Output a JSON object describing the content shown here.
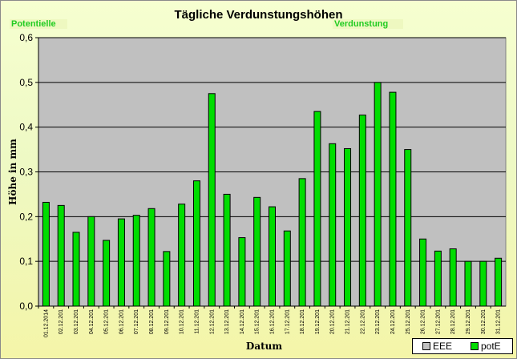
{
  "title": "Tägliche Verdunstungshöhen",
  "overlap_labels": [
    "Potentielle",
    "Verdunstung"
  ],
  "colors": {
    "bar_fill": "#00dd00",
    "bar_stroke": "#000000",
    "plot_bg": "#c0c0c0",
    "grid": "#000000"
  },
  "chart_data": {
    "type": "bar",
    "title": "Tägliche Verdunstungshöhen",
    "xlabel": "Datum",
    "ylabel": "Höhe in mm",
    "ylim": [
      0,
      0.6
    ],
    "yticks": [
      "0,0",
      "0,1",
      "0,2",
      "0,3",
      "0,4",
      "0,5",
      "0,6"
    ],
    "grid": true,
    "legend_position": "bottom-right",
    "legend": [
      {
        "label": "EEE",
        "color": "#c0c0c0"
      },
      {
        "label": "potE",
        "color": "#00dd00"
      }
    ],
    "categories": [
      "01.12.2014",
      "02.12.201",
      "03.12.201",
      "04.12.201",
      "05.12.201",
      "06.12.201",
      "07.12.201",
      "08.12.201",
      "09.12.201",
      "10.12.201",
      "11.12.201",
      "12.12.201",
      "13.12.201",
      "14.12.201",
      "15.12.201",
      "16.12.201",
      "17.12.201",
      "18.12.201",
      "19.12.201",
      "20.12.201",
      "21.12.201",
      "22.12.201",
      "23.12.201",
      "24.12.201",
      "25.12.201",
      "26.12.201",
      "27.12.201",
      "28.12.201",
      "29.12.201",
      "30.12.201",
      "31.12.201"
    ],
    "series": [
      {
        "name": "EEE",
        "values": [
          0,
          0,
          0,
          0,
          0,
          0,
          0,
          0,
          0,
          0,
          0,
          0,
          0,
          0,
          0,
          0,
          0,
          0,
          0,
          0,
          0,
          0,
          0,
          0,
          0,
          0,
          0,
          0,
          0,
          0,
          0
        ]
      },
      {
        "name": "potE",
        "values": [
          0.232,
          0.225,
          0.165,
          0.2,
          0.147,
          0.195,
          0.203,
          0.218,
          0.122,
          0.228,
          0.28,
          0.475,
          0.25,
          0.153,
          0.243,
          0.222,
          0.168,
          0.285,
          0.435,
          0.363,
          0.352,
          0.427,
          0.5,
          0.478,
          0.35,
          0.15,
          0.123,
          0.128,
          0.1,
          0.1,
          0.107
        ]
      }
    ]
  }
}
